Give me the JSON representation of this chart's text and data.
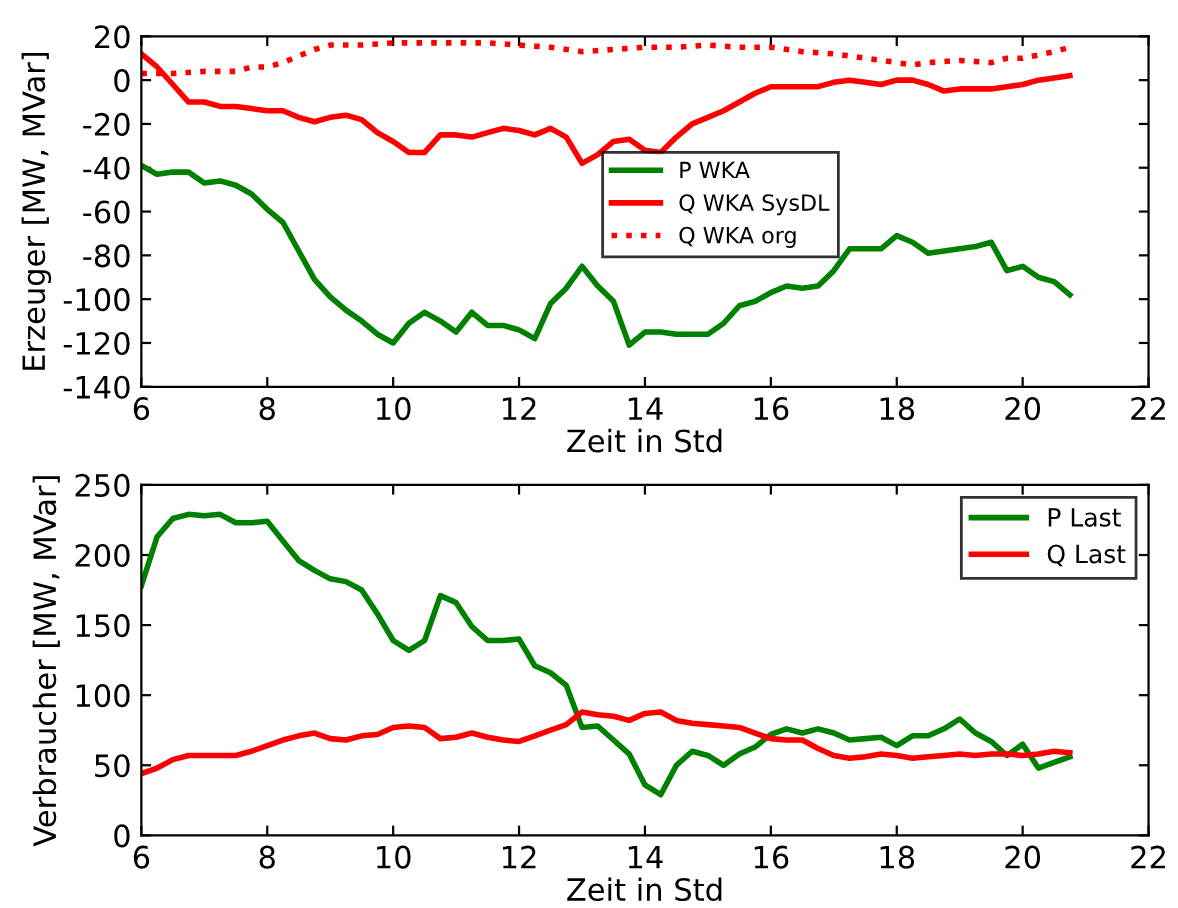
{
  "chart_data": [
    {
      "type": "line",
      "xlabel": "Zeit in Std",
      "ylabel": "Erzeuger [MW, MVar]",
      "x": [
        6,
        6.25,
        6.5,
        6.75,
        7,
        7.25,
        7.5,
        7.75,
        8,
        8.25,
        8.5,
        8.75,
        9,
        9.25,
        9.5,
        9.75,
        10,
        10.25,
        10.5,
        10.75,
        11,
        11.25,
        11.5,
        11.75,
        12,
        12.25,
        12.5,
        12.75,
        13,
        13.25,
        13.5,
        13.75,
        14,
        14.25,
        14.5,
        14.75,
        15,
        15.25,
        15.5,
        15.75,
        16,
        16.25,
        16.5,
        16.75,
        17,
        17.25,
        17.5,
        17.75,
        18,
        18.25,
        18.5,
        18.75,
        19,
        19.25,
        19.5,
        19.75,
        20,
        20.25,
        20.5,
        20.75
      ],
      "series": [
        {
          "name": "P WKA",
          "color": "#008000",
          "line_style": "solid",
          "values": [
            -39,
            -43,
            -42,
            -42,
            -47,
            -46,
            -48,
            -52,
            -59,
            -65,
            -78,
            -91,
            -99,
            -105,
            -110,
            -116,
            -120,
            -111,
            -106,
            -110,
            -115,
            -106,
            -112,
            -112,
            -114,
            -118,
            -102,
            -95,
            -85,
            -94,
            -101,
            -121,
            -115,
            -115,
            -116,
            -116,
            -116,
            -111,
            -103,
            -101,
            -97,
            -94,
            -95,
            -94,
            -87,
            -77,
            -77,
            -77,
            -71,
            -74,
            -79,
            -78,
            -77,
            -76,
            -74,
            -87,
            -85,
            -90,
            -92,
            -98
          ]
        },
        {
          "name": "Q WKA SysDL",
          "color": "#ff0000",
          "line_style": "solid",
          "values": [
            12,
            6,
            -2,
            -10,
            -10,
            -12,
            -12,
            -13,
            -14,
            -14,
            -17,
            -19,
            -17,
            -16,
            -18,
            -24,
            -28,
            -33,
            -33,
            -25,
            -25,
            -26,
            -24,
            -22,
            -23,
            -25,
            -22,
            -26,
            -38,
            -34,
            -28,
            -27,
            -32,
            -33,
            -26,
            -20,
            -17,
            -14,
            -10,
            -6,
            -3,
            -3,
            -3,
            -3,
            -1,
            0,
            -1,
            -2,
            0,
            0,
            -2,
            -5,
            -4,
            -4,
            -4,
            -3,
            -2,
            0,
            1,
            2
          ]
        },
        {
          "name": "Q WKA org",
          "color": "#ff0000",
          "line_style": "dotted",
          "x": [
            6,
            6.5,
            7,
            7.5,
            7.75,
            8,
            8.25,
            8.5,
            8.75,
            9,
            9.5,
            10,
            10.5,
            11,
            11.5,
            12,
            12.5,
            13,
            13.5,
            14,
            14.5,
            15,
            15.5,
            16,
            16.5,
            17,
            17.5,
            18,
            18.25,
            18.5,
            19,
            19.5,
            19.75,
            20,
            20.5,
            20.75
          ],
          "values": [
            3,
            3,
            4,
            4,
            6,
            6,
            8,
            11,
            14,
            16,
            16,
            17,
            17,
            17,
            17,
            16,
            15,
            13,
            14,
            15,
            15,
            16,
            15,
            15,
            13,
            12,
            10,
            8,
            7,
            8,
            9,
            8,
            10,
            10,
            13,
            15
          ]
        }
      ],
      "xlim": [
        6,
        22
      ],
      "xticks": [
        6,
        8,
        10,
        12,
        14,
        16,
        18,
        20,
        22
      ],
      "ylim": [
        -140,
        20
      ],
      "yticks": [
        -140,
        -120,
        -100,
        -80,
        -60,
        -40,
        -20,
        0,
        20
      ],
      "legend": "center",
      "grid": false
    },
    {
      "type": "line",
      "xlabel": "Zeit in Std",
      "ylabel": "Verbraucher [MW, MVar]",
      "x": [
        6,
        6.25,
        6.5,
        6.75,
        7,
        7.25,
        7.5,
        7.75,
        8,
        8.25,
        8.5,
        8.75,
        9,
        9.25,
        9.5,
        9.75,
        10,
        10.25,
        10.5,
        10.75,
        11,
        11.25,
        11.5,
        11.75,
        12,
        12.25,
        12.5,
        12.75,
        13,
        13.25,
        13.5,
        13.75,
        14,
        14.25,
        14.5,
        14.75,
        15,
        15.25,
        15.5,
        15.75,
        16,
        16.25,
        16.5,
        16.75,
        17,
        17.25,
        17.5,
        17.75,
        18,
        18.25,
        18.5,
        18.75,
        19,
        19.25,
        19.5,
        19.75,
        20,
        20.25,
        20.5,
        20.75
      ],
      "series": [
        {
          "name": "P Last",
          "color": "#008000",
          "line_style": "solid",
          "values": [
            178,
            213,
            226,
            229,
            228,
            229,
            223,
            223,
            224,
            210,
            196,
            189,
            183,
            181,
            175,
            158,
            139,
            132,
            139,
            171,
            166,
            149,
            139,
            139,
            140,
            121,
            116,
            107,
            77,
            78,
            68,
            58,
            36,
            29,
            50,
            60,
            57,
            50,
            58,
            63,
            72,
            76,
            73,
            76,
            73,
            68,
            69,
            70,
            64,
            71,
            71,
            76,
            83,
            73,
            67,
            57,
            65,
            48,
            52,
            56
          ]
        },
        {
          "name": "Q Last",
          "color": "#ff0000",
          "line_style": "solid",
          "values": [
            44,
            48,
            54,
            57,
            57,
            57,
            57,
            60,
            64,
            68,
            71,
            73,
            69,
            68,
            71,
            72,
            77,
            78,
            77,
            69,
            70,
            73,
            70,
            68,
            67,
            71,
            75,
            79,
            88,
            86,
            85,
            82,
            87,
            88,
            82,
            80,
            79,
            78,
            77,
            73,
            69,
            68,
            68,
            62,
            57,
            55,
            56,
            58,
            57,
            55,
            56,
            57,
            58,
            57,
            58,
            58,
            57,
            58,
            60,
            59
          ]
        }
      ],
      "xlim": [
        6,
        22
      ],
      "xticks": [
        6,
        8,
        10,
        12,
        14,
        16,
        18,
        20,
        22
      ],
      "ylim": [
        0,
        250
      ],
      "yticks": [
        0,
        50,
        100,
        150,
        200,
        250
      ],
      "legend": "upper right",
      "grid": false
    }
  ]
}
